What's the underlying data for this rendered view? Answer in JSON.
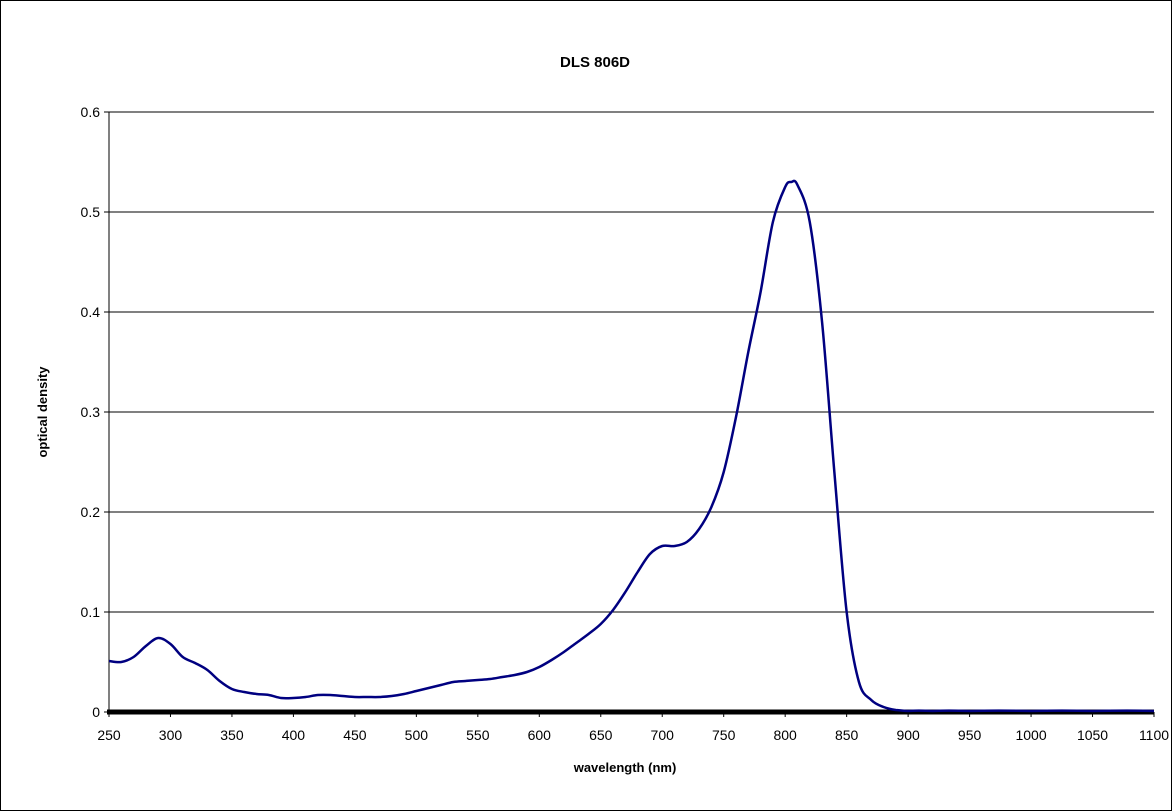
{
  "chart_data": {
    "type": "line",
    "title": "DLS 806D",
    "xlabel": "wavelength (nm)",
    "ylabel": "optical density",
    "xlim": [
      250,
      1100
    ],
    "ylim": [
      0,
      0.6
    ],
    "x_ticks": [
      "250",
      "300",
      "350",
      "400",
      "450",
      "500",
      "550",
      "600",
      "650",
      "700",
      "750",
      "800",
      "850",
      "900",
      "950",
      "1000",
      "1050",
      "1100"
    ],
    "y_ticks": [
      "0",
      "0.1",
      "0.2",
      "0.3",
      "0.4",
      "0.5",
      "0.6"
    ],
    "grid": true,
    "line_color": "#000080",
    "series": [
      {
        "x": [
          250,
          260,
          270,
          280,
          290,
          300,
          310,
          320,
          330,
          340,
          350,
          360,
          370,
          380,
          390,
          400,
          410,
          420,
          430,
          440,
          450,
          460,
          470,
          480,
          490,
          500,
          510,
          520,
          530,
          540,
          550,
          560,
          570,
          580,
          590,
          600,
          610,
          620,
          630,
          640,
          650,
          660,
          670,
          680,
          690,
          700,
          710,
          720,
          730,
          740,
          750,
          760,
          770,
          780,
          790,
          800,
          805,
          810,
          820,
          830,
          840,
          850,
          860,
          870,
          880,
          890,
          900,
          920,
          950,
          1000,
          1050,
          1100
        ],
        "y": [
          0.051,
          0.05,
          0.055,
          0.066,
          0.074,
          0.068,
          0.055,
          0.049,
          0.042,
          0.031,
          0.023,
          0.02,
          0.018,
          0.017,
          0.014,
          0.014,
          0.015,
          0.017,
          0.017,
          0.016,
          0.015,
          0.015,
          0.015,
          0.016,
          0.018,
          0.021,
          0.024,
          0.027,
          0.03,
          0.031,
          0.032,
          0.033,
          0.035,
          0.037,
          0.04,
          0.045,
          0.052,
          0.06,
          0.069,
          0.078,
          0.088,
          0.102,
          0.12,
          0.14,
          0.158,
          0.166,
          0.166,
          0.17,
          0.183,
          0.205,
          0.24,
          0.295,
          0.36,
          0.42,
          0.49,
          0.525,
          0.53,
          0.527,
          0.49,
          0.39,
          0.24,
          0.1,
          0.03,
          0.012,
          0.005,
          0.002,
          0.001,
          0.001,
          0.001,
          0.001,
          0.001,
          0.001
        ]
      }
    ]
  }
}
